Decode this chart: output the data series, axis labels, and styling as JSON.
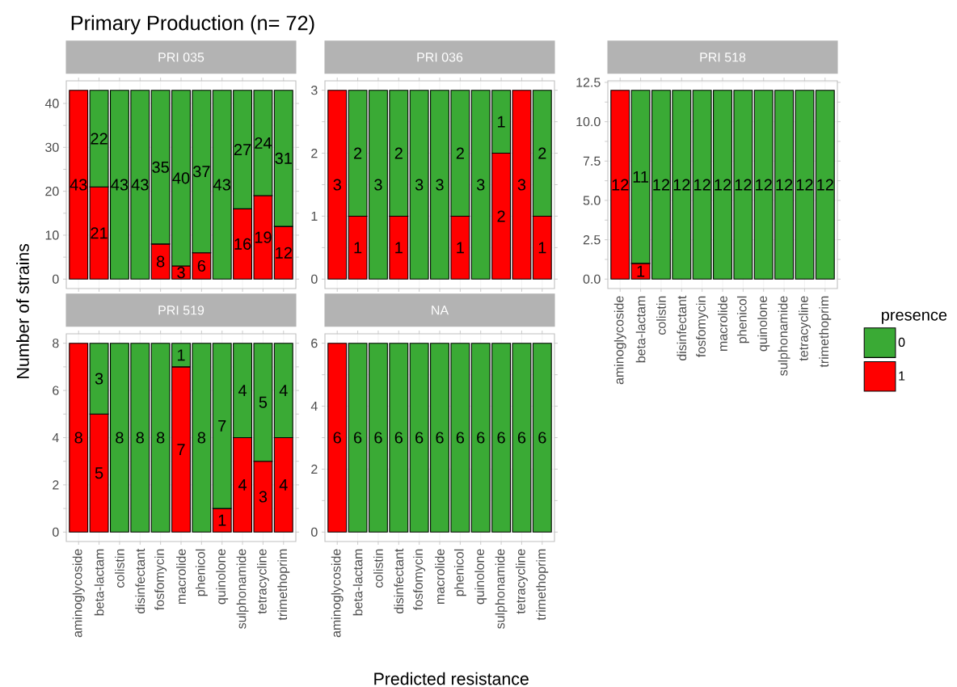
{
  "chart_data": [
    {
      "type": "bar",
      "stacked": true,
      "title": "Primary Production (n= 72)",
      "subtitle": "PRI 035",
      "ylabel": "Number of strains",
      "categories": [
        null,
        null,
        null,
        null,
        null,
        null,
        null,
        null,
        null,
        null,
        null
      ],
      "series": [
        {
          "color": "#ff0000",
          "values": [
            43,
            21,
            null,
            null,
            8,
            3,
            6,
            null,
            16,
            19,
            12
          ]
        },
        {
          "color": "#3aaa35",
          "values": [
            null,
            22,
            43,
            43,
            35,
            40,
            37,
            43,
            27,
            24,
            31
          ]
        }
      ],
      "ylim": [
        -2.15,
        45.15
      ],
      "yticks": [
        0,
        10,
        20,
        30,
        40
      ],
      "grid": true,
      "data_labels": true,
      "tick_labels": "y"
    },
    {
      "type": "bar",
      "stacked": true,
      "subtitle": "PRI 036",
      "categories": [
        null,
        null,
        null,
        null,
        null,
        null,
        null,
        null,
        null,
        null,
        null
      ],
      "series": [
        {
          "color": "#ff0000",
          "values": [
            3,
            1,
            null,
            1,
            null,
            null,
            1,
            null,
            2,
            3,
            1
          ]
        },
        {
          "color": "#3aaa35",
          "values": [
            null,
            2,
            3,
            2,
            3,
            3,
            2,
            3,
            1,
            null,
            2
          ]
        }
      ],
      "ylim": [
        -0.15,
        3.15
      ],
      "yticks": [
        0,
        1,
        2,
        3
      ],
      "grid": true,
      "data_labels": true,
      "tick_labels": "y"
    },
    {
      "type": "bar",
      "stacked": true,
      "subtitle": "PRI 518",
      "legend_title": "presence",
      "legend": "right",
      "categories": [
        "aminoglycoside",
        "beta-lactam",
        "colistin",
        "disinfectant",
        "fosfomycin",
        "macrolide",
        "phenicol",
        "quinolone",
        "sulphonamide",
        "tetracycline",
        "trimethoprim"
      ],
      "series": [
        {
          "name": "1",
          "color": "#ff0000",
          "values": [
            12,
            1,
            null,
            null,
            null,
            null,
            null,
            null,
            null,
            null,
            null
          ]
        },
        {
          "name": "0",
          "color": "#3aaa35",
          "values": [
            null,
            11,
            12,
            12,
            12,
            12,
            12,
            12,
            12,
            12,
            12
          ]
        }
      ],
      "ylim": [
        -0.6,
        12.6
      ],
      "yticks": [
        {
          "value": 0,
          "label": "0.0"
        },
        {
          "value": 2.5,
          "label": "2.5"
        },
        {
          "value": 5,
          "label": "5.0"
        },
        {
          "value": 7.5,
          "label": "7.5"
        },
        {
          "value": 10,
          "label": "10.0"
        },
        {
          "value": 12.5,
          "label": "12.5"
        }
      ],
      "grid": true,
      "data_labels": true
    },
    {
      "type": "bar",
      "stacked": true,
      "subtitle": "PRI 519",
      "categories": [
        "aminoglycoside",
        "beta-lactam",
        "colistin",
        "disinfectant",
        "fosfomycin",
        "macrolide",
        "phenicol",
        "quinolone",
        "sulphonamide",
        "tetracycline",
        "trimethoprim"
      ],
      "series": [
        {
          "color": "#ff0000",
          "values": [
            8,
            5,
            null,
            null,
            null,
            7,
            null,
            1,
            4,
            3,
            4
          ]
        },
        {
          "color": "#3aaa35",
          "values": [
            null,
            3,
            8,
            8,
            8,
            1,
            8,
            7,
            4,
            5,
            4
          ]
        }
      ],
      "ylim": [
        -0.4,
        8.4
      ],
      "yticks": [
        0,
        2,
        4,
        6,
        8
      ],
      "grid": true,
      "data_labels": true
    },
    {
      "type": "bar",
      "stacked": true,
      "subtitle": "NA",
      "xlabel": "Predicted resistance",
      "categories": [
        "aminoglycoside",
        "beta-lactam",
        "colistin",
        "disinfectant",
        "fosfomycin",
        "macrolide",
        "phenicol",
        "quinolone",
        "sulphonamide",
        "tetracycline",
        "trimethoprim"
      ],
      "series": [
        {
          "color": "#ff0000",
          "values": [
            6,
            null,
            null,
            null,
            null,
            null,
            null,
            null,
            null,
            null,
            null
          ]
        },
        {
          "color": "#3aaa35",
          "values": [
            null,
            6,
            6,
            6,
            6,
            6,
            6,
            6,
            6,
            6,
            6
          ]
        }
      ],
      "ylim": [
        -0.3,
        6.3
      ],
      "yticks": [
        0,
        2,
        4,
        6
      ],
      "grid": true,
      "data_labels": true
    }
  ]
}
